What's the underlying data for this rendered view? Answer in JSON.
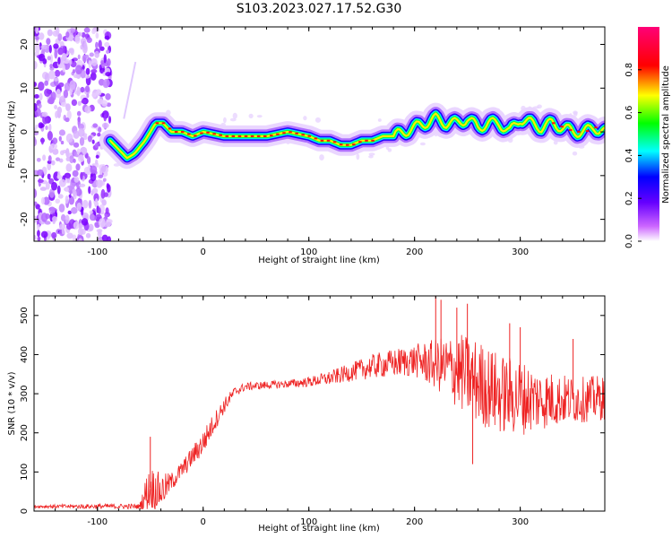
{
  "title": "S103.2023.027.17.52.G30",
  "colors": {
    "snr_line": "#ee2222",
    "axis": "#000000",
    "background": "#ffffff"
  },
  "chart_data": [
    {
      "type": "heatmap",
      "title": "S103.2023.027.17.52.G30",
      "xlabel": "Height of straight line (km)",
      "ylabel": "Frequency (Hz)",
      "xlim": [
        -160,
        380
      ],
      "ylim": [
        -25,
        24
      ],
      "xticks": [
        -100,
        0,
        100,
        200,
        300
      ],
      "yticks": [
        -20,
        -10,
        0,
        10,
        20
      ],
      "colorbar": {
        "label": "Normalized spectral amplitude",
        "range": [
          0.0,
          1.0
        ],
        "ticks": [
          "0.0",
          "0.2",
          "0.4",
          "0.6",
          "0.8"
        ],
        "colormap": "rainbow (white → purple → blue → cyan → green → yellow → red → magenta)"
      },
      "noise_region_x": [
        -160,
        -88
      ],
      "ridge": {
        "x": [
          -88,
          -80,
          -72,
          -65,
          -55,
          -45,
          -38,
          -30,
          -20,
          -10,
          0,
          20,
          40,
          60,
          80,
          100,
          110,
          120,
          130,
          140,
          150,
          160,
          170,
          180,
          190,
          200,
          210,
          220,
          230,
          240,
          250,
          260,
          270,
          280,
          290,
          300,
          310,
          320,
          330,
          340,
          350,
          360,
          370,
          380
        ],
        "y": [
          -2,
          -4,
          -6,
          -5,
          -2,
          2,
          2,
          0,
          0,
          -1,
          0,
          -1,
          -1,
          -1,
          0,
          -1,
          -2,
          -2,
          -3,
          -3,
          -2,
          -2,
          -1,
          -1,
          0,
          1,
          2,
          3,
          2,
          2,
          3,
          1,
          2,
          2,
          0,
          3,
          2,
          1,
          2,
          1,
          0,
          0,
          1,
          0
        ]
      }
    },
    {
      "type": "line",
      "xlabel": "Height of straight line (km)",
      "ylabel": "SNR (10 * v/v)",
      "xlim": [
        -160,
        380
      ],
      "ylim": [
        0,
        550
      ],
      "xticks": [
        -100,
        0,
        100,
        200,
        300
      ],
      "yticks": [
        0,
        100,
        200,
        300,
        400,
        500
      ],
      "envelope": {
        "x": [
          -160,
          -100,
          -60,
          -55,
          -50,
          -40,
          -30,
          -20,
          -10,
          0,
          10,
          20,
          30,
          40,
          60,
          80,
          100,
          120,
          140,
          160,
          180,
          200,
          220,
          240,
          260,
          280,
          300,
          320,
          340,
          360,
          380
        ],
        "mean": [
          12,
          12,
          12,
          40,
          60,
          50,
          75,
          105,
          140,
          175,
          225,
          270,
          305,
          318,
          322,
          325,
          330,
          340,
          355,
          370,
          378,
          385,
          375,
          360,
          330,
          300,
          290,
          285,
          285,
          285,
          290
        ],
        "noise": [
          3,
          5,
          5,
          30,
          45,
          35,
          18,
          18,
          20,
          25,
          20,
          15,
          10,
          8,
          8,
          8,
          10,
          14,
          18,
          24,
          28,
          32,
          50,
          75,
          85,
          80,
          75,
          60,
          50,
          45,
          45
        ]
      },
      "spikes": [
        {
          "x": -50,
          "y": 190
        },
        {
          "x": -45,
          "y": 40
        },
        {
          "x": 220,
          "y": 555
        },
        {
          "x": 225,
          "y": 540
        },
        {
          "x": 240,
          "y": 520
        },
        {
          "x": 250,
          "y": 530
        },
        {
          "x": 255,
          "y": 120
        },
        {
          "x": 290,
          "y": 480
        },
        {
          "x": 300,
          "y": 470
        },
        {
          "x": 350,
          "y": 440
        }
      ]
    }
  ]
}
